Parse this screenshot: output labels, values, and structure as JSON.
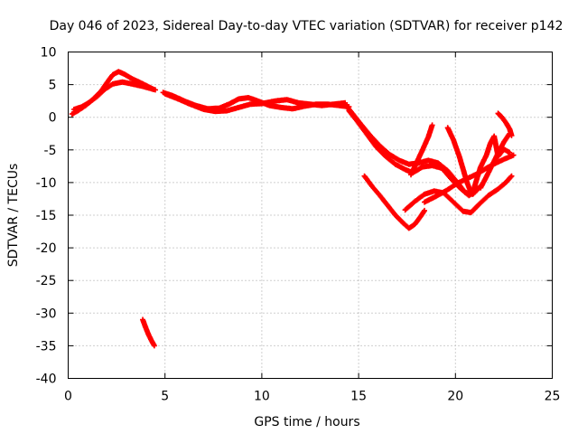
{
  "chart_data": {
    "type": "scatter",
    "title": "Day 046 of 2023, Sidereal Day-to-day VTEC variation (SDTVAR) for receiver p142",
    "xlabel": "GPS time / hours",
    "ylabel": "SDTVAR / TECUs",
    "xlim": [
      0,
      25
    ],
    "ylim": [
      -40,
      10
    ],
    "xticks": [
      0,
      5,
      10,
      15,
      20,
      25
    ],
    "yticks": [
      10,
      5,
      0,
      -5,
      -10,
      -15,
      -20,
      -25,
      -30,
      -35,
      -40
    ],
    "grid": true,
    "marker": "plus",
    "color": "#ff0000",
    "series": [
      {
        "name": "arc-1",
        "points": [
          [
            0.2,
            0.5
          ],
          [
            0.5,
            1.0
          ],
          [
            0.9,
            1.8
          ],
          [
            1.3,
            2.8
          ],
          [
            1.7,
            4.0
          ],
          [
            2.0,
            5.3
          ],
          [
            2.3,
            6.5
          ],
          [
            2.6,
            7.0
          ],
          [
            2.9,
            6.6
          ],
          [
            3.3,
            5.9
          ],
          [
            3.8,
            5.2
          ],
          [
            4.4,
            4.3
          ]
        ]
      },
      {
        "name": "arc-2",
        "points": [
          [
            0.3,
            1.2
          ],
          [
            0.7,
            1.6
          ],
          [
            1.1,
            2.3
          ],
          [
            1.5,
            3.2
          ],
          [
            1.9,
            4.3
          ],
          [
            2.3,
            5.1
          ],
          [
            2.8,
            5.4
          ],
          [
            3.3,
            5.1
          ],
          [
            3.9,
            4.7
          ],
          [
            4.5,
            4.2
          ]
        ]
      },
      {
        "name": "arc-3",
        "points": [
          [
            4.9,
            3.8
          ],
          [
            5.4,
            3.3
          ],
          [
            6.0,
            2.5
          ],
          [
            6.6,
            1.8
          ],
          [
            7.2,
            1.3
          ],
          [
            7.8,
            1.4
          ],
          [
            8.3,
            2.0
          ],
          [
            8.8,
            2.8
          ],
          [
            9.3,
            3.0
          ],
          [
            9.8,
            2.5
          ],
          [
            10.4,
            1.8
          ],
          [
            11.0,
            1.5
          ],
          [
            11.6,
            1.3
          ],
          [
            12.2,
            1.7
          ],
          [
            12.8,
            2.0
          ],
          [
            13.4,
            2.0
          ],
          [
            14.0,
            1.8
          ],
          [
            14.5,
            1.6
          ]
        ]
      },
      {
        "name": "arc-4",
        "points": [
          [
            5.0,
            3.6
          ],
          [
            5.6,
            2.9
          ],
          [
            6.3,
            2.0
          ],
          [
            7.0,
            1.2
          ],
          [
            7.6,
            0.9
          ],
          [
            8.2,
            1.0
          ],
          [
            8.8,
            1.5
          ],
          [
            9.4,
            2.0
          ],
          [
            10.0,
            2.1
          ],
          [
            10.7,
            2.5
          ],
          [
            11.3,
            2.7
          ],
          [
            11.9,
            2.2
          ],
          [
            12.5,
            2.0
          ],
          [
            13.1,
            1.8
          ],
          [
            13.7,
            2.0
          ],
          [
            14.3,
            2.2
          ]
        ]
      },
      {
        "name": "arc-5",
        "points": [
          [
            14.3,
            2.0
          ],
          [
            14.7,
            0.5
          ],
          [
            15.1,
            -1.0
          ],
          [
            15.6,
            -2.8
          ],
          [
            16.1,
            -4.4
          ],
          [
            16.6,
            -5.7
          ],
          [
            17.1,
            -6.6
          ],
          [
            17.6,
            -7.2
          ],
          [
            18.1,
            -7.0
          ],
          [
            18.6,
            -6.6
          ],
          [
            19.1,
            -7.0
          ],
          [
            19.6,
            -8.2
          ],
          [
            20.1,
            -10.0
          ],
          [
            20.5,
            -11.5
          ],
          [
            20.9,
            -11.8
          ],
          [
            21.3,
            -10.5
          ]
        ]
      },
      {
        "name": "arc-6",
        "points": [
          [
            14.5,
            1.0
          ],
          [
            14.9,
            -0.5
          ],
          [
            15.4,
            -2.5
          ],
          [
            15.9,
            -4.5
          ],
          [
            16.4,
            -6.0
          ],
          [
            16.9,
            -7.2
          ],
          [
            17.4,
            -8.0
          ],
          [
            17.8,
            -8.5
          ],
          [
            18.3,
            -7.6
          ],
          [
            18.8,
            -7.4
          ],
          [
            19.3,
            -7.8
          ],
          [
            19.8,
            -9.5
          ],
          [
            20.3,
            -11.0
          ],
          [
            20.7,
            -12.0
          ],
          [
            21.1,
            -11.2
          ]
        ]
      },
      {
        "name": "arc-7",
        "points": [
          [
            15.3,
            -9.0
          ],
          [
            15.7,
            -10.6
          ],
          [
            16.1,
            -12.0
          ],
          [
            16.5,
            -13.5
          ],
          [
            16.9,
            -15.0
          ],
          [
            17.3,
            -16.2
          ],
          [
            17.6,
            -17.0
          ],
          [
            17.9,
            -16.4
          ],
          [
            18.2,
            -15.2
          ],
          [
            18.4,
            -14.3
          ]
        ]
      },
      {
        "name": "arc-8",
        "points": [
          [
            17.4,
            -14.2
          ],
          [
            17.9,
            -12.9
          ],
          [
            18.4,
            -11.8
          ],
          [
            18.9,
            -11.3
          ],
          [
            19.4,
            -11.6
          ],
          [
            19.9,
            -13.0
          ],
          [
            20.4,
            -14.4
          ],
          [
            20.8,
            -14.6
          ],
          [
            21.2,
            -13.4
          ],
          [
            21.7,
            -12.0
          ],
          [
            22.2,
            -11.0
          ],
          [
            22.6,
            -10.0
          ],
          [
            22.9,
            -9.0
          ]
        ]
      },
      {
        "name": "arc-9",
        "points": [
          [
            17.7,
            -8.8
          ],
          [
            18.0,
            -6.9
          ],
          [
            18.3,
            -5.0
          ],
          [
            18.6,
            -3.0
          ],
          [
            18.8,
            -1.2
          ]
        ]
      },
      {
        "name": "arc-10",
        "points": [
          [
            19.6,
            -1.6
          ],
          [
            19.9,
            -3.5
          ],
          [
            20.2,
            -6.0
          ],
          [
            20.4,
            -8.0
          ],
          [
            20.6,
            -10.0
          ],
          [
            20.8,
            -11.5
          ]
        ]
      },
      {
        "name": "arc-11",
        "points": [
          [
            18.4,
            -13.0
          ],
          [
            19.0,
            -12.1
          ],
          [
            19.6,
            -11.1
          ],
          [
            20.1,
            -10.1
          ],
          [
            20.6,
            -9.4
          ],
          [
            21.1,
            -8.7
          ],
          [
            21.6,
            -7.8
          ],
          [
            22.1,
            -7.0
          ],
          [
            22.6,
            -6.3
          ],
          [
            23.0,
            -5.8
          ]
        ]
      },
      {
        "name": "arc-12",
        "points": [
          [
            20.9,
            -11.5
          ],
          [
            21.1,
            -9.5
          ],
          [
            21.3,
            -7.6
          ],
          [
            21.6,
            -5.8
          ],
          [
            21.8,
            -4.0
          ],
          [
            22.0,
            -2.9
          ],
          [
            22.2,
            -6.0
          ],
          [
            22.5,
            -4.9
          ],
          [
            22.8,
            -5.4
          ]
        ]
      },
      {
        "name": "arc-13",
        "points": [
          [
            22.2,
            0.6
          ],
          [
            22.4,
            0.0
          ],
          [
            22.6,
            -0.8
          ],
          [
            22.8,
            -1.8
          ],
          [
            22.9,
            -2.8
          ]
        ]
      },
      {
        "name": "arc-14",
        "points": [
          [
            21.3,
            -10.8
          ],
          [
            21.6,
            -9.1
          ],
          [
            21.9,
            -7.3
          ],
          [
            22.2,
            -5.5
          ],
          [
            22.5,
            -3.8
          ],
          [
            22.8,
            -2.5
          ]
        ]
      },
      {
        "name": "arc-15",
        "points": [
          [
            3.85,
            -31.0
          ],
          [
            4.0,
            -32.2
          ],
          [
            4.15,
            -33.3
          ],
          [
            4.3,
            -34.2
          ],
          [
            4.45,
            -35.0
          ]
        ]
      }
    ]
  }
}
